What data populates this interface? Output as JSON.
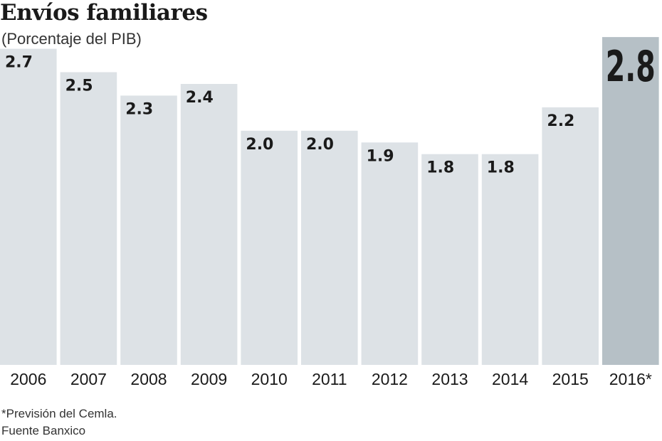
{
  "chart_data": {
    "type": "bar",
    "title": "Envíos familiares",
    "subtitle": "(Porcentaje del PIB)",
    "categories": [
      "2006",
      "2007",
      "2008",
      "2009",
      "2010",
      "2011",
      "2012",
      "2013",
      "2014",
      "2015",
      "2016*"
    ],
    "values": [
      2.7,
      2.5,
      2.3,
      2.4,
      2.0,
      2.0,
      1.9,
      1.8,
      1.8,
      2.2,
      2.8
    ],
    "value_labels": [
      "2.7",
      "2.5",
      "2.3",
      "2.4",
      "2.0",
      "2.0",
      "1.9",
      "1.8",
      "1.8",
      "2.2",
      "2.8"
    ],
    "highlight_index": 10,
    "xlabel": "",
    "ylabel": "",
    "grid": false,
    "legend": "none",
    "colors": {
      "bar": "#dde2e6",
      "highlight_bar": "#b6c0c6",
      "label": "#1a1a1a",
      "axis_text": "#1a1a1a"
    }
  },
  "notes": {
    "footnote": "*Previsión del Cemla.",
    "source": "Fuente Banxico"
  }
}
